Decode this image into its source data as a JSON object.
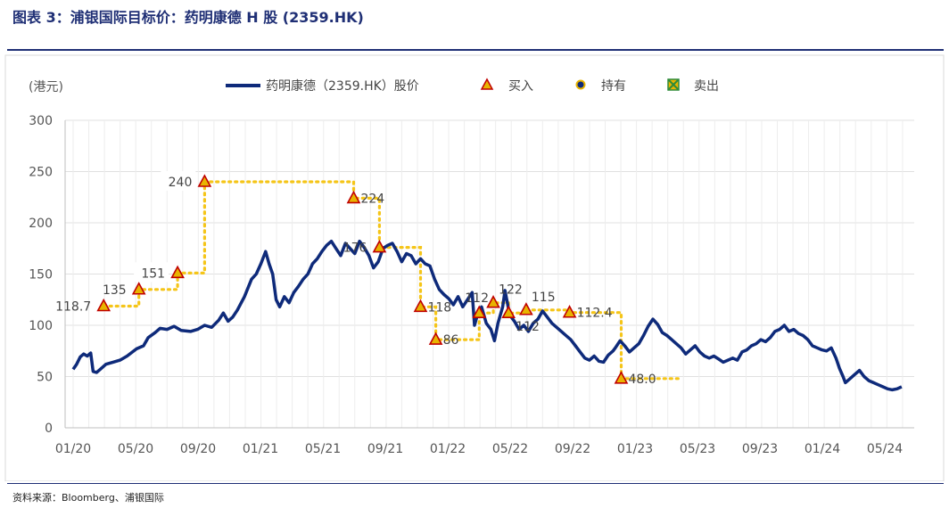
{
  "header": {
    "title": "图表 3：浦银国际目标价：药明康德 H 股 (2359.HK)"
  },
  "footer": {
    "source": "资料来源：Bloomberg、浦银国际"
  },
  "chart_data": {
    "type": "line",
    "ylabel": "(港元)",
    "ylim": [
      0,
      300
    ],
    "yticks": [
      0,
      50,
      100,
      150,
      200,
      250,
      300
    ],
    "x_tick_labels": [
      "01/20",
      "05/20",
      "09/20",
      "01/21",
      "05/21",
      "09/21",
      "01/22",
      "05/22",
      "09/22",
      "01/23",
      "05/23",
      "09/23",
      "01/24",
      "05/24"
    ],
    "grid": true,
    "legend_position": "top",
    "colors": {
      "price": "#0e2a7a",
      "target": "#f5c518",
      "buy_fill": "#e8b400",
      "buy_edge": "#c00000",
      "hold_fill": "#0e2a7a",
      "hold_edge": "#e8b400",
      "sell": "#2e8b3a"
    },
    "legend": [
      {
        "key": "price",
        "label": "药明康德（2359.HK）股价"
      },
      {
        "key": "buy",
        "label": "买入"
      },
      {
        "key": "hold",
        "label": "持有"
      },
      {
        "key": "sell",
        "label": "卖出"
      }
    ],
    "price_series": {
      "name": "药明康德（2359.HK）股价",
      "points": [
        [
          0.0,
          57
        ],
        [
          0.15,
          62
        ],
        [
          0.3,
          69
        ],
        [
          0.45,
          72
        ],
        [
          0.6,
          70
        ],
        [
          0.75,
          73
        ],
        [
          0.85,
          55
        ],
        [
          1.0,
          54
        ],
        [
          1.2,
          58
        ],
        [
          1.4,
          62
        ],
        [
          1.7,
          64
        ],
        [
          2.0,
          66
        ],
        [
          2.3,
          70
        ],
        [
          2.7,
          77
        ],
        [
          3.0,
          80
        ],
        [
          3.2,
          88
        ],
        [
          3.5,
          93
        ],
        [
          3.7,
          97
        ],
        [
          4.0,
          96
        ],
        [
          4.3,
          99
        ],
        [
          4.6,
          95
        ],
        [
          5.0,
          94
        ],
        [
          5.3,
          96
        ],
        [
          5.6,
          100
        ],
        [
          5.9,
          98
        ],
        [
          6.2,
          105
        ],
        [
          6.4,
          112
        ],
        [
          6.6,
          104
        ],
        [
          6.8,
          108
        ],
        [
          7.0,
          115
        ],
        [
          7.3,
          128
        ],
        [
          7.6,
          145
        ],
        [
          7.8,
          150
        ],
        [
          8.0,
          160
        ],
        [
          8.2,
          172
        ],
        [
          8.35,
          160
        ],
        [
          8.5,
          150
        ],
        [
          8.65,
          125
        ],
        [
          8.8,
          118
        ],
        [
          9.0,
          128
        ],
        [
          9.2,
          122
        ],
        [
          9.4,
          132
        ],
        [
          9.6,
          138
        ],
        [
          9.8,
          145
        ],
        [
          10.0,
          150
        ],
        [
          10.2,
          160
        ],
        [
          10.4,
          165
        ],
        [
          10.6,
          172
        ],
        [
          10.8,
          178
        ],
        [
          11.0,
          182
        ],
        [
          11.2,
          175
        ],
        [
          11.4,
          168
        ],
        [
          11.6,
          180
        ],
        [
          11.8,
          175
        ],
        [
          12.0,
          170
        ],
        [
          12.2,
          182
        ],
        [
          12.4,
          176
        ],
        [
          12.6,
          168
        ],
        [
          12.8,
          156
        ],
        [
          13.0,
          162
        ],
        [
          13.2,
          175
        ],
        [
          13.4,
          178
        ],
        [
          13.6,
          180
        ],
        [
          13.8,
          172
        ],
        [
          14.0,
          162
        ],
        [
          14.2,
          170
        ],
        [
          14.4,
          168
        ],
        [
          14.6,
          160
        ],
        [
          14.8,
          165
        ],
        [
          15.0,
          160
        ],
        [
          15.2,
          158
        ],
        [
          15.4,
          145
        ],
        [
          15.6,
          135
        ],
        [
          15.8,
          130
        ],
        [
          16.0,
          126
        ],
        [
          16.2,
          120
        ],
        [
          16.4,
          128
        ],
        [
          16.6,
          118
        ],
        [
          16.8,
          125
        ],
        [
          17.0,
          132
        ],
        [
          17.1,
          100
        ],
        [
          17.2,
          108
        ],
        [
          17.4,
          118
        ],
        [
          17.6,
          102
        ],
        [
          17.8,
          96
        ],
        [
          17.95,
          85
        ],
        [
          18.1,
          102
        ],
        [
          18.3,
          118
        ],
        [
          18.4,
          134
        ],
        [
          18.6,
          110
        ],
        [
          18.8,
          104
        ],
        [
          19.0,
          96
        ],
        [
          19.2,
          100
        ],
        [
          19.4,
          94
        ],
        [
          19.6,
          102
        ],
        [
          19.8,
          106
        ],
        [
          20.0,
          114
        ],
        [
          20.2,
          108
        ],
        [
          20.4,
          102
        ],
        [
          20.6,
          98
        ],
        [
          20.8,
          94
        ],
        [
          21.0,
          90
        ],
        [
          21.2,
          86
        ],
        [
          21.4,
          80
        ],
        [
          21.6,
          74
        ],
        [
          21.8,
          68
        ],
        [
          22.0,
          66
        ],
        [
          22.2,
          70
        ],
        [
          22.4,
          65
        ],
        [
          22.6,
          64
        ],
        [
          22.8,
          71
        ],
        [
          23.0,
          75
        ],
        [
          23.1,
          78
        ],
        [
          23.3,
          85
        ],
        [
          23.5,
          80
        ],
        [
          23.7,
          74
        ],
        [
          23.9,
          78
        ],
        [
          24.1,
          82
        ],
        [
          24.3,
          90
        ],
        [
          24.5,
          99
        ],
        [
          24.7,
          106
        ],
        [
          24.9,
          101
        ],
        [
          25.1,
          93
        ],
        [
          25.3,
          90
        ],
        [
          25.5,
          86
        ],
        [
          25.7,
          82
        ],
        [
          25.9,
          78
        ],
        [
          26.1,
          72
        ],
        [
          26.3,
          76
        ],
        [
          26.5,
          80
        ],
        [
          26.7,
          74
        ],
        [
          26.9,
          70
        ],
        [
          27.1,
          68
        ],
        [
          27.3,
          70
        ],
        [
          27.5,
          67
        ],
        [
          27.7,
          64
        ],
        [
          27.9,
          66
        ],
        [
          28.1,
          68
        ],
        [
          28.3,
          66
        ],
        [
          28.5,
          74
        ],
        [
          28.7,
          76
        ],
        [
          28.9,
          80
        ],
        [
          29.1,
          82
        ],
        [
          29.3,
          86
        ],
        [
          29.5,
          84
        ],
        [
          29.7,
          88
        ],
        [
          29.9,
          94
        ],
        [
          30.1,
          96
        ],
        [
          30.3,
          100
        ],
        [
          30.5,
          94
        ],
        [
          30.7,
          96
        ],
        [
          30.9,
          92
        ],
        [
          31.1,
          90
        ],
        [
          31.3,
          86
        ],
        [
          31.5,
          80
        ],
        [
          31.7,
          78
        ],
        [
          31.9,
          76
        ],
        [
          32.1,
          75
        ],
        [
          32.3,
          78
        ],
        [
          32.5,
          68
        ],
        [
          32.65,
          58
        ],
        [
          32.8,
          50
        ],
        [
          32.9,
          44
        ],
        [
          33.1,
          48
        ],
        [
          33.3,
          52
        ],
        [
          33.5,
          56
        ],
        [
          33.7,
          50
        ],
        [
          33.9,
          46
        ],
        [
          34.1,
          44
        ],
        [
          34.3,
          42
        ],
        [
          34.5,
          40
        ],
        [
          34.7,
          38
        ],
        [
          34.9,
          37
        ],
        [
          35.1,
          38
        ],
        [
          35.3,
          40
        ]
      ]
    },
    "target_path": [
      [
        1.3,
        118.7
      ],
      [
        2.8,
        118.7
      ],
      [
        2.8,
        135
      ],
      [
        4.45,
        135
      ],
      [
        4.45,
        151
      ],
      [
        5.6,
        151
      ],
      [
        5.6,
        240
      ],
      [
        11.95,
        240
      ],
      [
        11.95,
        224
      ],
      [
        13.05,
        224
      ],
      [
        13.05,
        176
      ],
      [
        14.8,
        176
      ],
      [
        14.8,
        118
      ],
      [
        15.45,
        118
      ],
      [
        15.45,
        86
      ],
      [
        17.3,
        86
      ],
      [
        17.3,
        112
      ],
      [
        17.9,
        112
      ],
      [
        17.9,
        122
      ],
      [
        18.55,
        122
      ],
      [
        18.55,
        112
      ],
      [
        19.3,
        112
      ],
      [
        19.3,
        115
      ],
      [
        21.15,
        115
      ],
      [
        21.15,
        112.4
      ],
      [
        23.35,
        112.4
      ],
      [
        23.35,
        48
      ],
      [
        25.8,
        48
      ]
    ],
    "markers": [
      {
        "x": 1.3,
        "y": 118.7,
        "type": "buy",
        "label": "118.7",
        "pos": "left"
      },
      {
        "x": 2.8,
        "y": 135,
        "type": "buy",
        "label": "135",
        "pos": "left"
      },
      {
        "x": 4.45,
        "y": 151,
        "type": "buy",
        "label": "151",
        "pos": "left"
      },
      {
        "x": 5.6,
        "y": 240,
        "type": "buy",
        "label": "240",
        "pos": "left"
      },
      {
        "x": 11.95,
        "y": 224,
        "type": "buy",
        "label": "224",
        "pos": "right"
      },
      {
        "x": 13.05,
        "y": 176,
        "type": "buy",
        "label": "176",
        "pos": "left"
      },
      {
        "x": 14.8,
        "y": 118,
        "type": "buy",
        "label": "118",
        "pos": "right"
      },
      {
        "x": 15.45,
        "y": 86,
        "type": "buy",
        "label": "86",
        "pos": "right"
      },
      {
        "x": 17.3,
        "y": 112,
        "type": "buy",
        "label": "112",
        "pos": "above"
      },
      {
        "x": 17.9,
        "y": 122,
        "type": "buy",
        "label": "122",
        "pos": "aboveright"
      },
      {
        "x": 18.55,
        "y": 112,
        "type": "buy",
        "label": "112",
        "pos": "belowright"
      },
      {
        "x": 19.3,
        "y": 115,
        "type": "buy",
        "label": "115",
        "pos": "aboveright"
      },
      {
        "x": 21.15,
        "y": 112.4,
        "type": "buy",
        "label": "112.4",
        "pos": "right"
      },
      {
        "x": 23.35,
        "y": 48,
        "type": "buy",
        "label": "48.0",
        "pos": "right"
      }
    ]
  }
}
